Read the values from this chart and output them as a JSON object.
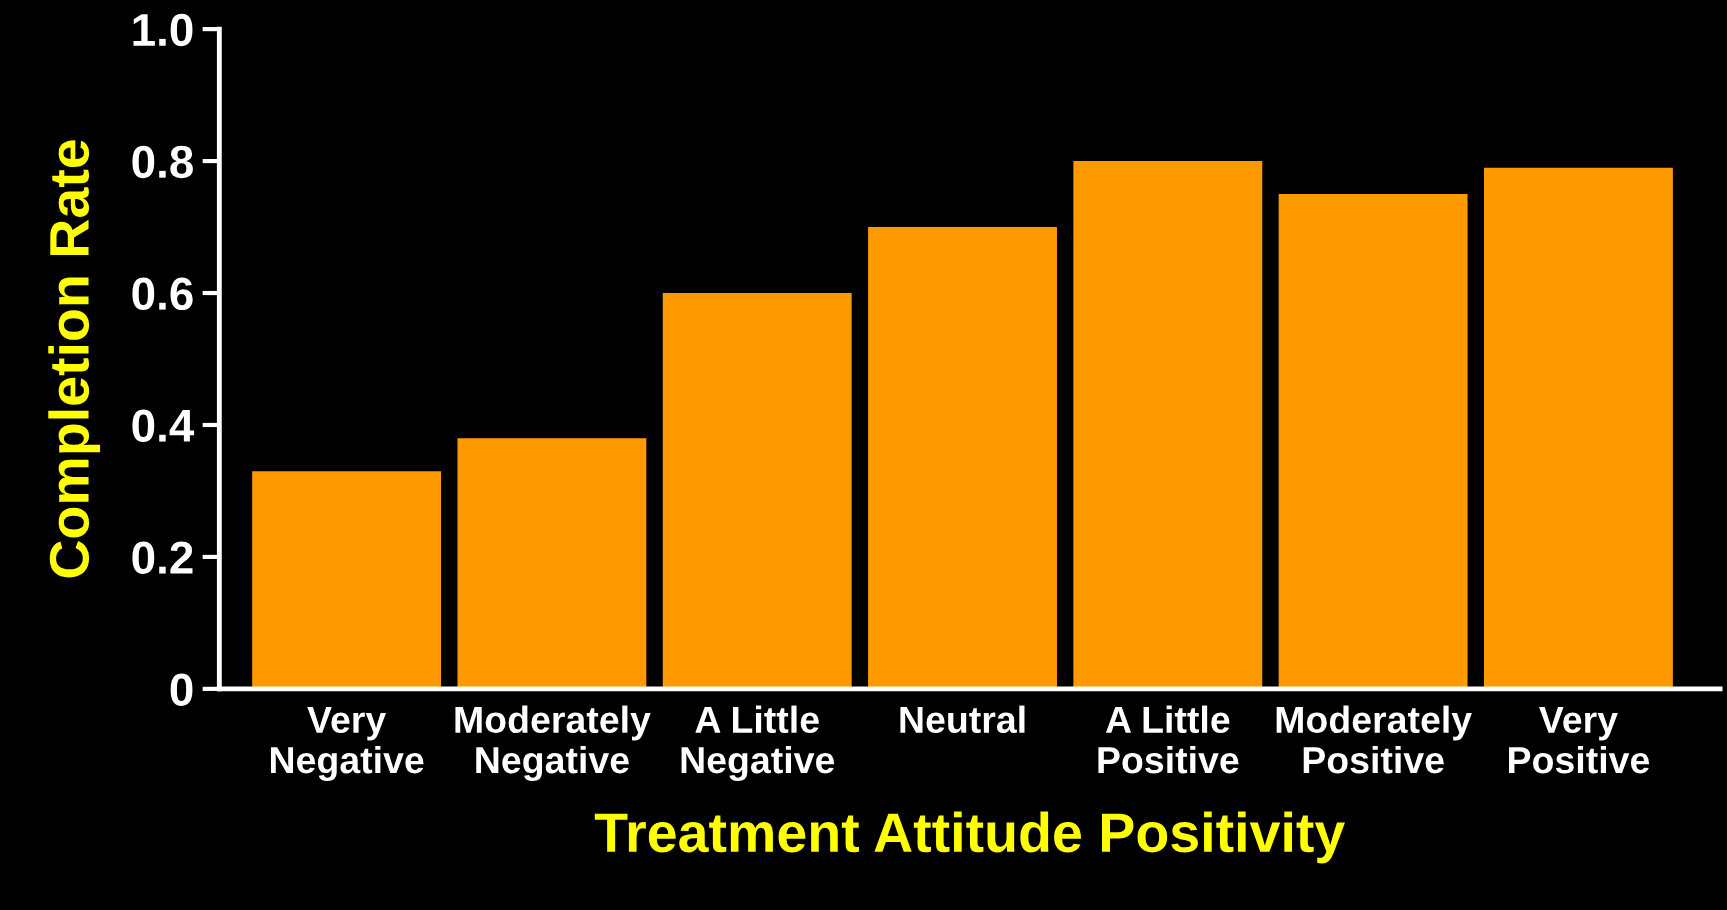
{
  "chart_data": {
    "type": "bar",
    "xlabel": "Treatment Attitude Positivity",
    "ylabel": "Completion Rate",
    "categories": [
      "Very\nNegative",
      "Moderately\nNegative",
      "A Little\nNegative",
      "Neutral",
      "A Little\nPositive",
      "Moderately\nPositive",
      "Very\nPositive"
    ],
    "values": [
      0.33,
      0.38,
      0.6,
      0.7,
      0.8,
      0.75,
      0.79
    ],
    "color": "#ff9900",
    "ylim": [
      0,
      1.0
    ],
    "yticks": [
      {
        "value": 0,
        "label": "0"
      },
      0.2,
      0.4,
      0.6,
      0.8,
      {
        "value": 1.0,
        "label": "1.0"
      }
    ],
    "grid": false,
    "legend": false
  }
}
